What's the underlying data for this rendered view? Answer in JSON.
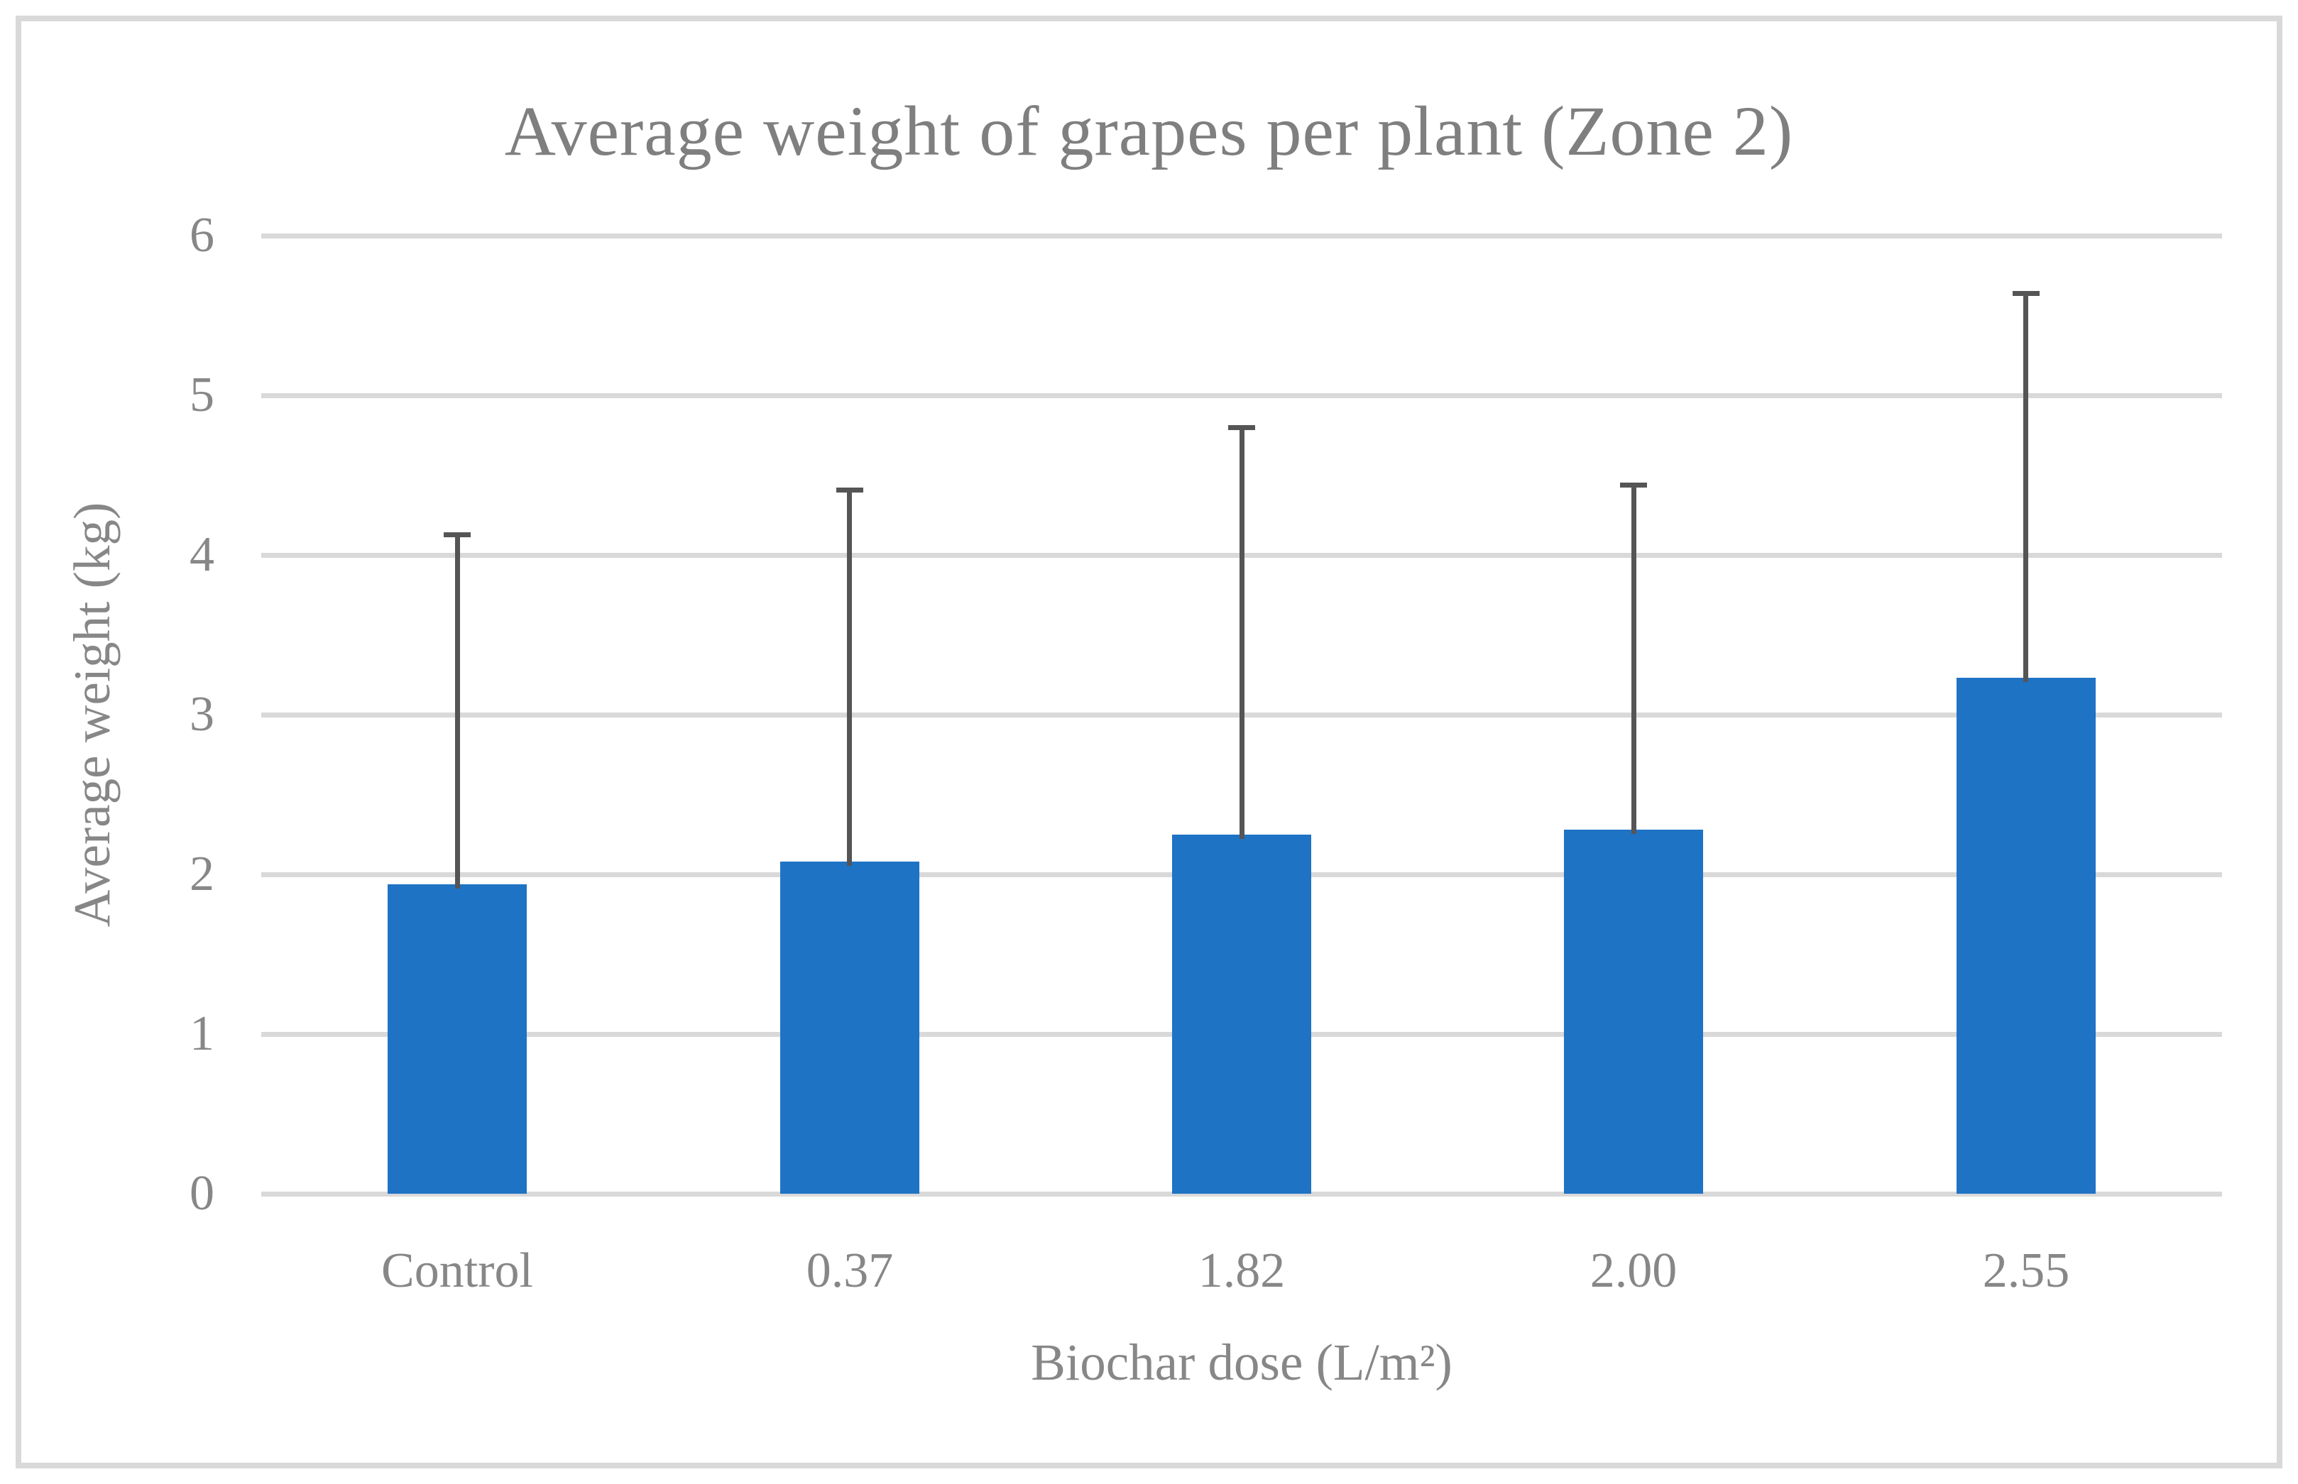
{
  "chart_data": {
    "type": "bar",
    "title": "Average weight of grapes per plant (Zone 2)",
    "xlabel": "Biochar dose (L/m²)",
    "ylabel": "Average weight (kg)",
    "categories": [
      "Control",
      "0.37",
      "1.82",
      "2.00",
      "2.55"
    ],
    "values": [
      1.94,
      2.08,
      2.25,
      2.28,
      3.23
    ],
    "error_top": [
      4.13,
      4.41,
      4.8,
      4.44,
      5.64
    ],
    "ylim": [
      0,
      6
    ],
    "yticks": [
      0,
      1,
      2,
      3,
      4,
      5,
      6
    ],
    "grid": true,
    "legend": "none",
    "colors": {
      "bar": "#1F73C5",
      "error": "#555555",
      "grid": "#D9D9D9",
      "text": "#878787",
      "title": "#7F7F7F",
      "frame": "#D9D9D9"
    }
  }
}
